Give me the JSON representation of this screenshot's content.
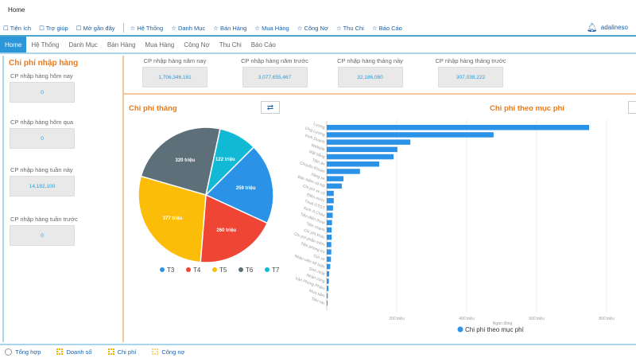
{
  "window": {
    "title": "Home"
  },
  "toolbar": {
    "items": [
      "Tiện ích",
      "Trợ giúp",
      "Mở gần đây",
      "Hệ Thống",
      "Danh Mục",
      "Bán Hàng",
      "Mua Hàng",
      "Công Nợ",
      "Thu Chi",
      "Báo Cáo"
    ],
    "user": "adalineso"
  },
  "menu": {
    "items": [
      "Home",
      "Hệ Thống",
      "Danh Mục",
      "Bán Hàng",
      "Mua Hàng",
      "Công Nợ",
      "Thu Chi",
      "Báo Cáo"
    ]
  },
  "left": {
    "title": "Chi phí nhập hàng",
    "kpis": [
      {
        "label": "CP nhập hàng hôm nay",
        "value": "0"
      },
      {
        "label": "CP nhập hàng hôm qua",
        "value": "0"
      },
      {
        "label": "CP nhập hàng tuần này",
        "value": "14,182,100"
      },
      {
        "label": "CP nhập hàng tuần trước",
        "value": "0"
      }
    ]
  },
  "top_kpis": [
    {
      "label": "CP nhập hàng năm nay",
      "value": "1,706,346,161"
    },
    {
      "label": "CP nhập hàng năm trước",
      "value": "3,077,655,467"
    },
    {
      "label": "CP nhập hàng tháng này",
      "value": "32,186,060"
    },
    {
      "label": "CP nhập hàng tháng trước",
      "value": "307,038,222"
    }
  ],
  "colors": {
    "T3": "#2a93e8",
    "T4": "#ef4535",
    "T5": "#fbbd08",
    "T6": "#5d7079",
    "T7": "#12b9d4",
    "bar": "#2a93e8"
  },
  "chart_data": [
    {
      "type": "pie",
      "title": "Chi phí tháng",
      "categories": [
        "T3",
        "T4",
        "T5",
        "T6",
        "T7"
      ],
      "values": [
        259,
        260,
        377,
        320,
        122
      ],
      "unit": "triệu",
      "data_labels": [
        "259 triệu",
        "260 triệu",
        "377 triệu",
        "320 triệu",
        "122 triệu"
      ],
      "legend": "bottom"
    },
    {
      "type": "bar",
      "orientation": "horizontal",
      "title": "Chi phí theo mục phí",
      "categories": [
        "Lương",
        "Ứng Lương",
        "Kinh Doanh",
        "Website",
        "Mặt bằng",
        "Tiền ăn",
        "Chuyển Khoản",
        "Xăng xe",
        "Bảo hiểm xã hội",
        "Chi phí xe cộ",
        "Điện nước",
        "Thuế GTGT",
        "Kinh Á Châu",
        "Tiền điện thoại",
        "Tiền chành",
        "Chi phí khác",
        "Chi phí phần mềm",
        "Tiền phòng trọ",
        "Gửi xe",
        "Nhân viên kế toán",
        "Sinh nhật",
        "Nhân công",
        "Văn Phòng Phẩm",
        "Mua sắm",
        "Tiền rác"
      ],
      "values": [
        750,
        477,
        239,
        202,
        191,
        150,
        95,
        48,
        43,
        20,
        20,
        18,
        17,
        15,
        14,
        14,
        13,
        13,
        12,
        10,
        7,
        6,
        5,
        3,
        2
      ],
      "xlabel": "Ngàn đồng",
      "xlim": [
        0,
        850
      ],
      "xticks": [
        200,
        400,
        600,
        800
      ],
      "xtick_labels": [
        "200 triệu",
        "400 triệu",
        "600 triệu",
        "800 triệu"
      ],
      "legend_label": "Chi phí theo mục phí",
      "legend": "bottom"
    }
  ],
  "footer": {
    "tabs": [
      "Tổng hợp",
      "Doanh số",
      "Chi phí",
      "Công nợ"
    ]
  }
}
